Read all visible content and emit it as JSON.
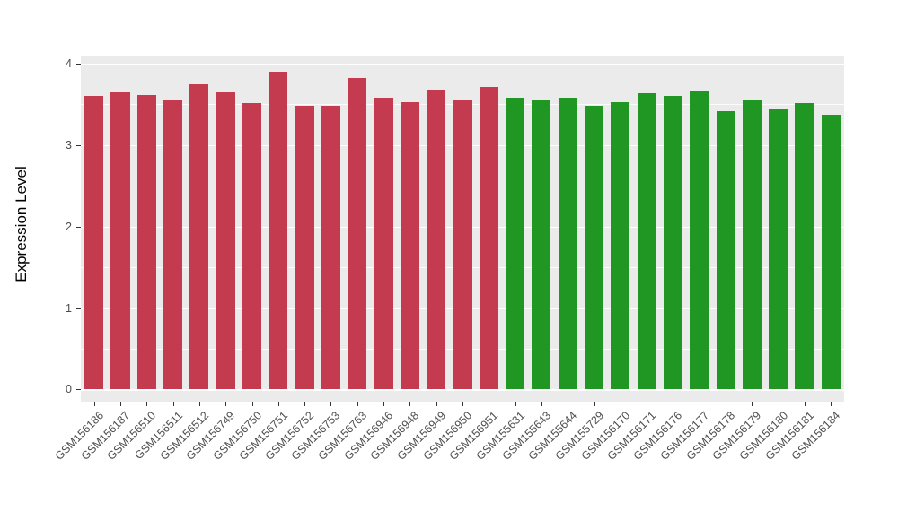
{
  "chart_data": {
    "type": "bar",
    "title": "",
    "xlabel": "",
    "ylabel": "Expression Level",
    "ylim": [
      0,
      4
    ],
    "yticks": [
      0,
      1,
      2,
      3,
      4
    ],
    "grid": "on",
    "legend": "none",
    "panel_background": "#EBEBEB",
    "gridline_color": "#ffffff",
    "palette": {
      "red": "#C43A4E",
      "green": "#1F9722"
    },
    "categories": [
      "GSM156186",
      "GSM156187",
      "GSM156510",
      "GSM156511",
      "GSM156512",
      "GSM156749",
      "GSM156750",
      "GSM156751",
      "GSM156752",
      "GSM156753",
      "GSM156763",
      "GSM156946",
      "GSM156948",
      "GSM156949",
      "GSM156950",
      "GSM156951",
      "GSM155631",
      "GSM155643",
      "GSM155644",
      "GSM155729",
      "GSM156170",
      "GSM156171",
      "GSM156176",
      "GSM156177",
      "GSM156178",
      "GSM156179",
      "GSM156180",
      "GSM156181",
      "GSM156184"
    ],
    "values": [
      3.6,
      3.65,
      3.62,
      3.56,
      3.75,
      3.65,
      3.52,
      3.9,
      3.48,
      3.48,
      3.82,
      3.58,
      3.53,
      3.68,
      3.55,
      3.71,
      3.58,
      3.56,
      3.58,
      3.48,
      3.53,
      3.64,
      3.6,
      3.66,
      3.42,
      3.55,
      3.44,
      3.52,
      3.37
    ],
    "groups": [
      "red",
      "red",
      "red",
      "red",
      "red",
      "red",
      "red",
      "red",
      "red",
      "red",
      "red",
      "red",
      "red",
      "red",
      "red",
      "red",
      "green",
      "green",
      "green",
      "green",
      "green",
      "green",
      "green",
      "green",
      "green",
      "green",
      "green",
      "green",
      "green"
    ]
  }
}
